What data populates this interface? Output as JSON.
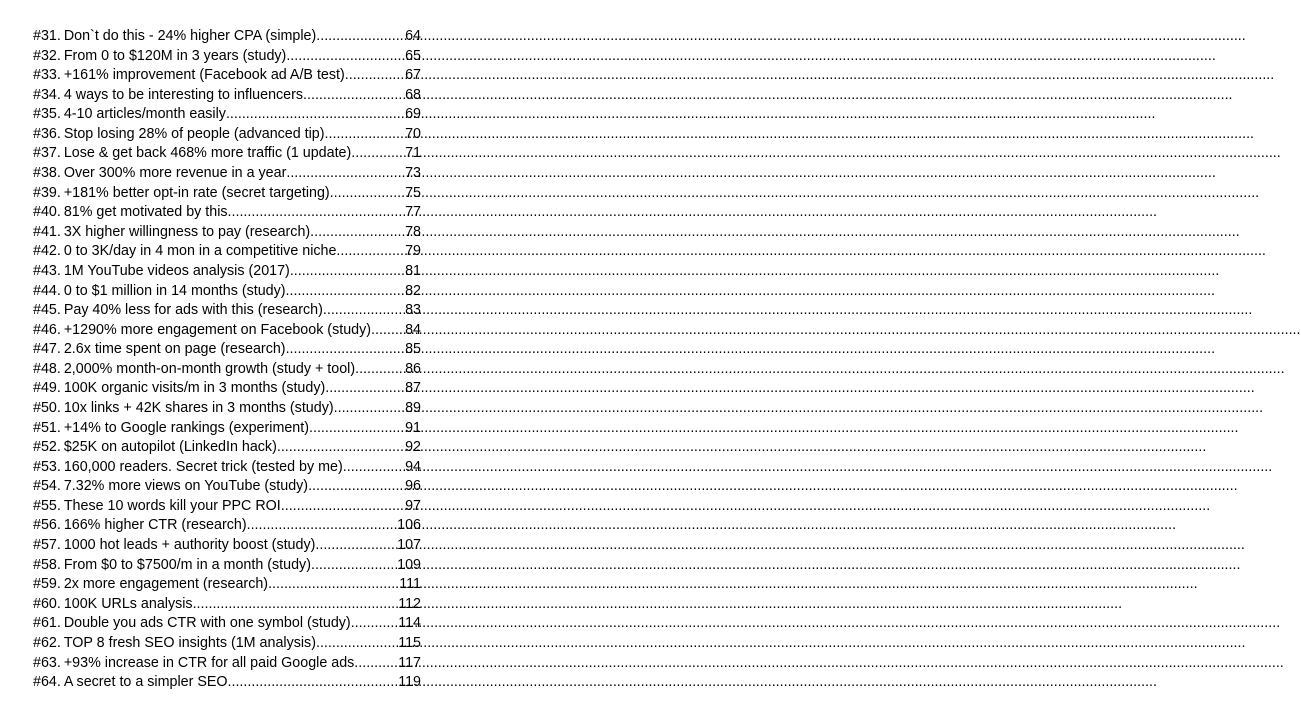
{
  "toc": {
    "entries": [
      {
        "num": "#31.",
        "title": "Don`t do this - 24% higher CPA (simple)",
        "page": "64"
      },
      {
        "num": "#32.",
        "title": "From 0 to $120M in 3 years (study)",
        "page": "65"
      },
      {
        "num": "#33.",
        "title": "+161% improvement (Facebook ad A/B test)",
        "page": "67"
      },
      {
        "num": "#34.",
        "title": "4 ways to be interesting to influencers",
        "page": "68"
      },
      {
        "num": "#35.",
        "title": "4-10 articles/month easily",
        "page": "69"
      },
      {
        "num": "#36.",
        "title": "Stop losing 28% of people (advanced tip)",
        "page": "70"
      },
      {
        "num": "#37.",
        "title": "Lose & get back 468% more traffic (1 update)",
        "page": "71"
      },
      {
        "num": "#38.",
        "title": "Over 300% more revenue in a year",
        "page": "73"
      },
      {
        "num": "#39.",
        "title": "+181% better opt-in rate (secret targeting)",
        "page": "75"
      },
      {
        "num": "#40.",
        "title": "81% get motivated by this",
        "page": "77"
      },
      {
        "num": "#41.",
        "title": "3X higher willingness to pay (research)",
        "page": "78"
      },
      {
        "num": "#42.",
        "title": "0 to 3K/day in 4 mon in a competitive niche",
        "page": "79"
      },
      {
        "num": "#43.",
        "title": "1M YouTube videos analysis (2017)",
        "page": "81"
      },
      {
        "num": "#44.",
        "title": "0 to $1 million in 14 months (study)",
        "page": "82"
      },
      {
        "num": "#45.",
        "title": "Pay 40% less for ads with this (research)",
        "page": "83"
      },
      {
        "num": "#46.",
        "title": "+1290% more engagement on Facebook (study)",
        "page": "84"
      },
      {
        "num": "#47.",
        "title": "2.6x time spent on page (research)",
        "page": "85"
      },
      {
        "num": "#48.",
        "title": "2,000% month-on-month growth (study + tool)",
        "page": "86"
      },
      {
        "num": "#49.",
        "title": "100K organic visits/m in 3 months (study)",
        "page": "87"
      },
      {
        "num": "#50.",
        "title": "10x links + 42K shares in 3 months (study)",
        "page": "89"
      },
      {
        "num": "#51.",
        "title": "+14% to Google rankings (experiment)",
        "page": "91"
      },
      {
        "num": "#52.",
        "title": "$25K on autopilot (LinkedIn hack)",
        "page": "92"
      },
      {
        "num": "#53.",
        "title": "160,000 readers. Secret trick (tested by me)",
        "page": "94"
      },
      {
        "num": "#54.",
        "title": "7.32% more views on YouTube (study)",
        "page": "96"
      },
      {
        "num": "#55.",
        "title": "These 10 words kill your PPC ROI",
        "page": "97"
      },
      {
        "num": "#56.",
        "title": "166% higher CTR (research)",
        "page": "106"
      },
      {
        "num": "#57.",
        "title": "1000 hot leads + authority boost (study)",
        "page": "107"
      },
      {
        "num": "#58.",
        "title": "From $0 to $7500/m in a month (study)",
        "page": "109"
      },
      {
        "num": "#59.",
        "title": "2x more engagement (research)",
        "page": "111"
      },
      {
        "num": "#60.",
        "title": "100K URLs analysis",
        "page": "112"
      },
      {
        "num": "#61.",
        "title": "Double you ads CTR with one symbol (study)",
        "page": "114"
      },
      {
        "num": "#62.",
        "title": "TOP 8 fresh SEO insights (1M analysis)",
        "page": "115"
      },
      {
        "num": "#63.",
        "title": "+93% increase in CTR for all paid Google ads",
        "page": "117"
      },
      {
        "num": "#64.",
        "title": "A secret to a simpler SEO",
        "page": "119"
      }
    ]
  }
}
